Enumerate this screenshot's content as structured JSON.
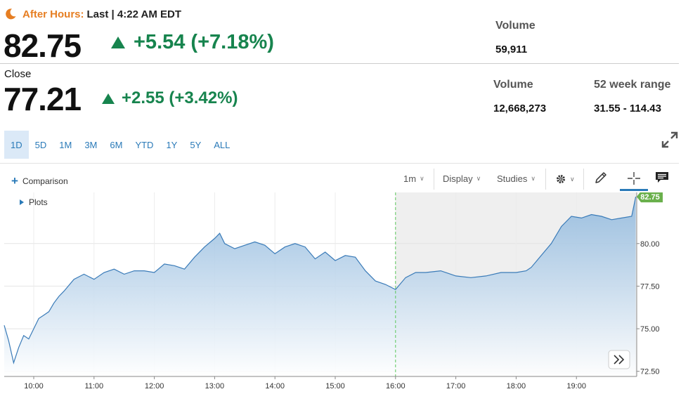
{
  "after_hours": {
    "label": "After Hours:",
    "last_text": "Last | 4:22 AM EDT",
    "price": "82.75",
    "change": "+5.54 (+7.18%)",
    "volume_label": "Volume",
    "volume": "59,911"
  },
  "close": {
    "label": "Close",
    "price": "77.21",
    "change": "+2.55 (+3.42%)",
    "volume_label": "Volume",
    "volume": "12,668,273",
    "range_label": "52 week range",
    "range": "31.55 - 114.43"
  },
  "range_tabs": [
    "1D",
    "5D",
    "1M",
    "3M",
    "6M",
    "YTD",
    "1Y",
    "5Y",
    "ALL"
  ],
  "active_tab": "1D",
  "toolbar": {
    "comparison": "Comparison",
    "interval": "1m",
    "display": "Display",
    "studies": "Studies",
    "plots": "Plots"
  },
  "colors": {
    "up": "#17844e",
    "after_hours": "#e67e22",
    "accent": "#2a7ab8",
    "line": "#3a7bb8",
    "last_price_flag": "#6ab04c"
  },
  "icons": [
    "moon-icon",
    "triangle-up-icon",
    "expand-icon",
    "plus-icon",
    "gear-icon",
    "pencil-icon",
    "crosshair-icon",
    "comment-icon",
    "double-chevron-right-icon"
  ],
  "chart_data": {
    "type": "area",
    "last_price_label": "82.75",
    "x_ticks": [
      "10:00",
      "11:00",
      "12:00",
      "13:00",
      "14:00",
      "15:00",
      "16:00",
      "17:00",
      "18:00",
      "19:00"
    ],
    "y_ticks": [
      "80.00",
      "77.50",
      "75.00",
      "72.50"
    ],
    "ylim": [
      72.2,
      83.0
    ],
    "session_close_time": "16:00",
    "x": [
      "09:30",
      "09:35",
      "09:40",
      "09:45",
      "09:50",
      "09:55",
      "10:00",
      "10:05",
      "10:10",
      "10:15",
      "10:20",
      "10:25",
      "10:30",
      "10:40",
      "10:50",
      "11:00",
      "11:10",
      "11:20",
      "11:30",
      "11:40",
      "11:50",
      "12:00",
      "12:10",
      "12:20",
      "12:30",
      "12:40",
      "12:50",
      "13:00",
      "13:05",
      "13:10",
      "13:20",
      "13:30",
      "13:40",
      "13:50",
      "14:00",
      "14:10",
      "14:20",
      "14:30",
      "14:40",
      "14:50",
      "15:00",
      "15:10",
      "15:20",
      "15:30",
      "15:40",
      "15:50",
      "16:00",
      "16:10",
      "16:20",
      "16:30",
      "16:45",
      "17:00",
      "17:15",
      "17:30",
      "17:45",
      "18:00",
      "18:10",
      "18:15",
      "18:25",
      "18:35",
      "18:45",
      "18:55",
      "19:05",
      "19:15",
      "19:25",
      "19:35",
      "19:45",
      "19:55",
      "19:59"
    ],
    "y": [
      75.2,
      74.3,
      73.0,
      73.9,
      74.6,
      74.4,
      75.0,
      75.6,
      75.8,
      76.0,
      76.5,
      76.9,
      77.2,
      77.9,
      78.2,
      77.9,
      78.3,
      78.5,
      78.2,
      78.4,
      78.4,
      78.3,
      78.8,
      78.7,
      78.5,
      79.2,
      79.8,
      80.3,
      80.6,
      80.0,
      79.7,
      79.9,
      80.1,
      79.9,
      79.4,
      79.8,
      80.0,
      79.8,
      79.1,
      79.5,
      79.0,
      79.3,
      79.2,
      78.4,
      77.8,
      77.6,
      77.3,
      78.0,
      78.3,
      78.3,
      78.4,
      78.1,
      78.0,
      78.1,
      78.3,
      78.3,
      78.4,
      78.6,
      79.3,
      80.0,
      81.0,
      81.6,
      81.5,
      81.7,
      81.6,
      81.4,
      81.5,
      81.6,
      82.75
    ]
  }
}
